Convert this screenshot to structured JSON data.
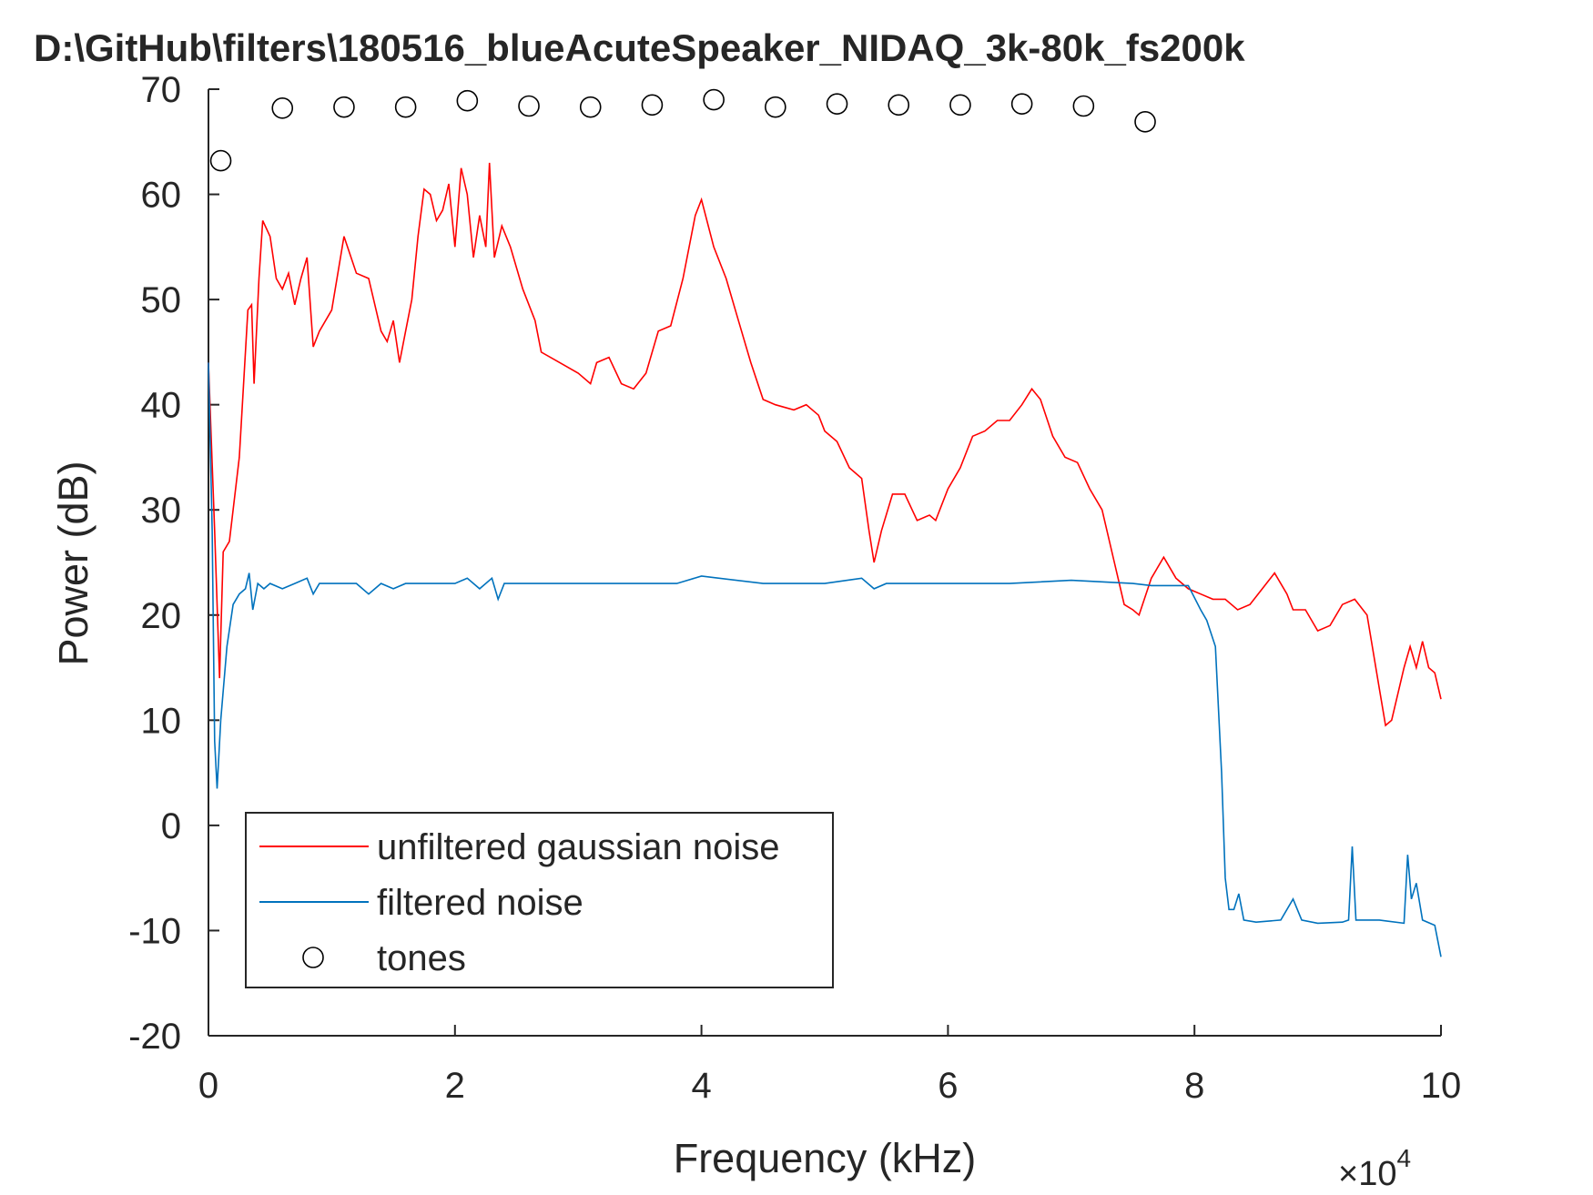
{
  "chart_data": {
    "type": "line",
    "title": "D:\\GitHub\\filters\\180516_blueAcuteSpeaker_NIDAQ_3k-80k_fs200k",
    "x_label": "Frequency (kHz)",
    "y_label": "Power (dB)",
    "x_multiplier": {
      "base": "×10",
      "exponent": "4"
    },
    "xlim": [
      0,
      100000
    ],
    "ylim": [
      -20,
      70
    ],
    "xticks": [
      {
        "value": 0,
        "label": "0"
      },
      {
        "value": 20000,
        "label": "2"
      },
      {
        "value": 40000,
        "label": "4"
      },
      {
        "value": 60000,
        "label": "6"
      },
      {
        "value": 80000,
        "label": "8"
      },
      {
        "value": 100000,
        "label": "10"
      }
    ],
    "yticks": [
      -20,
      -10,
      0,
      10,
      20,
      30,
      40,
      50,
      60,
      70
    ],
    "grid": false,
    "legend_location": "southwest",
    "series": [
      {
        "name": "unfiltered gaussian noise",
        "color": "#ff0000",
        "kind": "line",
        "x": [
          0,
          500,
          900,
          1200,
          1700,
          2500,
          3200,
          3500,
          3700,
          4100,
          4400,
          5000,
          5500,
          6000,
          6500,
          7000,
          7500,
          8000,
          8500,
          9000,
          10000,
          11000,
          12000,
          13000,
          14000,
          14500,
          15000,
          15500,
          16000,
          16500,
          17000,
          17500,
          18000,
          18500,
          19000,
          19500,
          20000,
          20500,
          21000,
          21500,
          22000,
          22500,
          22800,
          23200,
          23800,
          24500,
          25500,
          26500,
          27000,
          28500,
          30000,
          31000,
          31500,
          32500,
          33500,
          34500,
          35500,
          36500,
          37500,
          38500,
          39500,
          40000,
          41000,
          42000,
          43000,
          44000,
          45000,
          46000,
          47500,
          48500,
          49500,
          50000,
          51000,
          52000,
          53000,
          53600,
          54000,
          54600,
          55500,
          56500,
          57500,
          58500,
          59000,
          60000,
          61000,
          62000,
          63000,
          64000,
          65000,
          66000,
          66800,
          67500,
          68500,
          69500,
          70500,
          71500,
          72500,
          73500,
          74300,
          75000,
          75500,
          76500,
          77500,
          78500,
          79500,
          80500,
          81500,
          82500,
          83500,
          84500,
          85500,
          86500,
          87500,
          88000,
          89000,
          90000,
          91000,
          92000,
          93000,
          94000,
          95000,
          95500,
          96000,
          97000,
          97500,
          98000,
          98500,
          99000,
          99500,
          100000
        ],
        "values": [
          44,
          28,
          14,
          26,
          27,
          35,
          49,
          49.5,
          42,
          52,
          57.5,
          56,
          52,
          51,
          52.5,
          49.5,
          52,
          54,
          45.5,
          47,
          49,
          56,
          52.5,
          52,
          47,
          46,
          48,
          44,
          47,
          50,
          56,
          60.5,
          60,
          57.5,
          58.5,
          61,
          55,
          62.5,
          60,
          54,
          58,
          55,
          63,
          54,
          57,
          55,
          51,
          48,
          45,
          44,
          43,
          42,
          44,
          44.5,
          42,
          41.5,
          43,
          47,
          47.5,
          52,
          58,
          59.5,
          55,
          52,
          48,
          44,
          40.5,
          40,
          39.5,
          40,
          39,
          37.5,
          36.5,
          34,
          33,
          28,
          25,
          28,
          31.5,
          31.5,
          29,
          29.5,
          29,
          32,
          34,
          37,
          37.5,
          38.5,
          38.5,
          40,
          41.5,
          40.5,
          37,
          35,
          34.5,
          32,
          30,
          25,
          21,
          20.5,
          20,
          23.5,
          25.5,
          23.5,
          22.5,
          22,
          21.5,
          21.5,
          20.5,
          21,
          22.5,
          24,
          22,
          20.5,
          20.5,
          18.5,
          19,
          21,
          21.5,
          20,
          13,
          9.5,
          10,
          15,
          17,
          15,
          17.5,
          15,
          14.5,
          12
        ]
      },
      {
        "name": "filtered noise",
        "color": "#0072bd",
        "kind": "line",
        "x": [
          0,
          300,
          500,
          700,
          1000,
          1500,
          2000,
          2500,
          3000,
          3300,
          3600,
          4000,
          4500,
          5000,
          6000,
          7000,
          8000,
          8500,
          9000,
          12000,
          13000,
          14000,
          15000,
          16000,
          20000,
          21000,
          22000,
          23000,
          23500,
          24000,
          30000,
          35000,
          38000,
          40000,
          45000,
          50000,
          53000,
          54000,
          55000,
          60000,
          65000,
          70000,
          75000,
          76500,
          78000,
          79500,
          80500,
          81000,
          81700,
          82200,
          82500,
          82800,
          83200,
          83600,
          84000,
          85000,
          87000,
          88000,
          88700,
          90000,
          92000,
          92500,
          92800,
          93100,
          95000,
          97000,
          97300,
          97600,
          98000,
          98500,
          99500,
          100000
        ],
        "values": [
          44,
          28,
          8,
          3.5,
          10,
          17,
          21,
          22,
          22.5,
          24,
          20.5,
          23,
          22.5,
          23,
          22.5,
          23,
          23.5,
          22,
          23,
          23,
          22,
          23,
          22.5,
          23,
          23,
          23.5,
          22.5,
          23.5,
          21.5,
          23,
          23,
          23,
          23,
          23.7,
          23,
          23,
          23.5,
          22.5,
          23,
          23,
          23,
          23.3,
          23,
          22.8,
          22.8,
          22.8,
          20.5,
          19.5,
          17,
          5,
          -5,
          -8,
          -8,
          -6.5,
          -9,
          -9.2,
          -9,
          -7,
          -9,
          -9.3,
          -9.2,
          -9,
          -2,
          -9,
          -9,
          -9.3,
          -2.8,
          -7,
          -5.5,
          -9,
          -9.5,
          -12.5
        ]
      },
      {
        "name": "tones",
        "color": "#000000",
        "kind": "scatter",
        "x": [
          1000,
          6000,
          11000,
          16000,
          21000,
          26000,
          31000,
          36000,
          41000,
          46000,
          51000,
          56000,
          61000,
          66000,
          71000,
          76000
        ],
        "values": [
          63.2,
          68.2,
          68.3,
          68.3,
          68.9,
          68.4,
          68.3,
          68.5,
          69.0,
          68.3,
          68.6,
          68.5,
          68.5,
          68.6,
          68.4,
          66.9
        ]
      }
    ]
  }
}
